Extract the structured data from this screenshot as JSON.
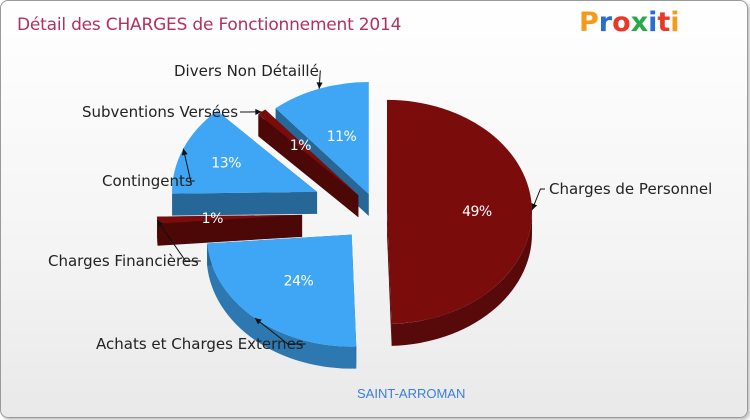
{
  "header": {
    "title": "Détail des CHARGES de Fonctionnement 2014",
    "logo": "Proxiti",
    "logo_colors": [
      "#f59a1b",
      "#2a6dd1",
      "#e8382a",
      "#2aa84a",
      "#2a6dd1",
      "#e8382a",
      "#f59a1b"
    ]
  },
  "footer": {
    "commune": "SAINT-ARROMAN"
  },
  "colors": {
    "dark_red": "#7a0c0c",
    "blue": "#3ea6f5",
    "title": "#b03060"
  },
  "chart_data": {
    "type": "pie",
    "title": "Détail des CHARGES de Fonctionnement 2014",
    "slices": [
      {
        "label": "Charges de Personnel",
        "value": 49,
        "pct_text": "49%",
        "color": "#7a0c0c"
      },
      {
        "label": "Achats et Charges Externes",
        "value": 24,
        "pct_text": "24%",
        "color": "#3ea6f5"
      },
      {
        "label": "Charges Financières",
        "value": 1,
        "pct_text": "1%",
        "color": "#7a0c0c"
      },
      {
        "label": "Contingents",
        "value": 13,
        "pct_text": "13%",
        "color": "#3ea6f5"
      },
      {
        "label": "Subventions Versées",
        "value": 1,
        "pct_text": "1%",
        "color": "#7a0c0c"
      },
      {
        "label": "Divers Non Détaillé",
        "value": 11,
        "pct_text": "11%",
        "color": "#3ea6f5"
      }
    ]
  }
}
